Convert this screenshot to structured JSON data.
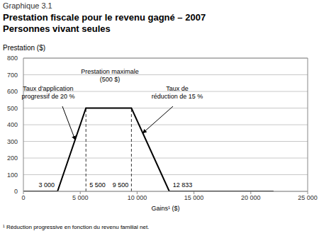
{
  "chart_data": {
    "type": "line",
    "label": "Graphique 3.1",
    "title": "Prestation fiscale pour le revenu gagné – 2007",
    "subtitle": "Personnes vivant seules",
    "ylabel": "Prestation ($)",
    "xlabel": "Gains¹ ($)",
    "footnote": "¹ Réduction progressive en fonction du revenu familial net.",
    "x": [
      0,
      3000,
      5500,
      9500,
      12833,
      22000
    ],
    "values": [
      0,
      0,
      500,
      500,
      0,
      0
    ],
    "color": "#000000",
    "line_style": "solid",
    "xlim": [
      0,
      25000
    ],
    "xticks": [
      0,
      {
        "value": 5000,
        "label": "5 000"
      },
      {
        "value": 10000,
        "label": "10 000"
      },
      {
        "value": 15000,
        "label": "15 000"
      },
      {
        "value": 20000,
        "label": "20 000"
      },
      {
        "value": 25000,
        "label": "25 000"
      }
    ],
    "ylim": [
      0,
      800
    ],
    "yticks": [
      0,
      100,
      200,
      300,
      400,
      500,
      600,
      700,
      800
    ],
    "grid": true,
    "point_labels": [
      {
        "x": 3000,
        "label": "3 000"
      },
      {
        "x": 5500,
        "label": "5 500"
      },
      {
        "x": 9500,
        "label": "9 500"
      },
      {
        "x": 12833,
        "label": "12 833"
      }
    ],
    "reference_lines": [
      {
        "x": 5500,
        "y": 500,
        "line_style": "dashed"
      },
      {
        "x": 9500,
        "y": 500,
        "line_style": "dashed"
      }
    ],
    "annotations": [
      {
        "text": [
          "Taux d'application",
          "progressif de 20 %"
        ]
      },
      {
        "text": [
          "Prestation maximale",
          "(500 $)"
        ]
      },
      {
        "text": [
          "Taux de",
          "réduction de 15 %"
        ]
      }
    ]
  }
}
